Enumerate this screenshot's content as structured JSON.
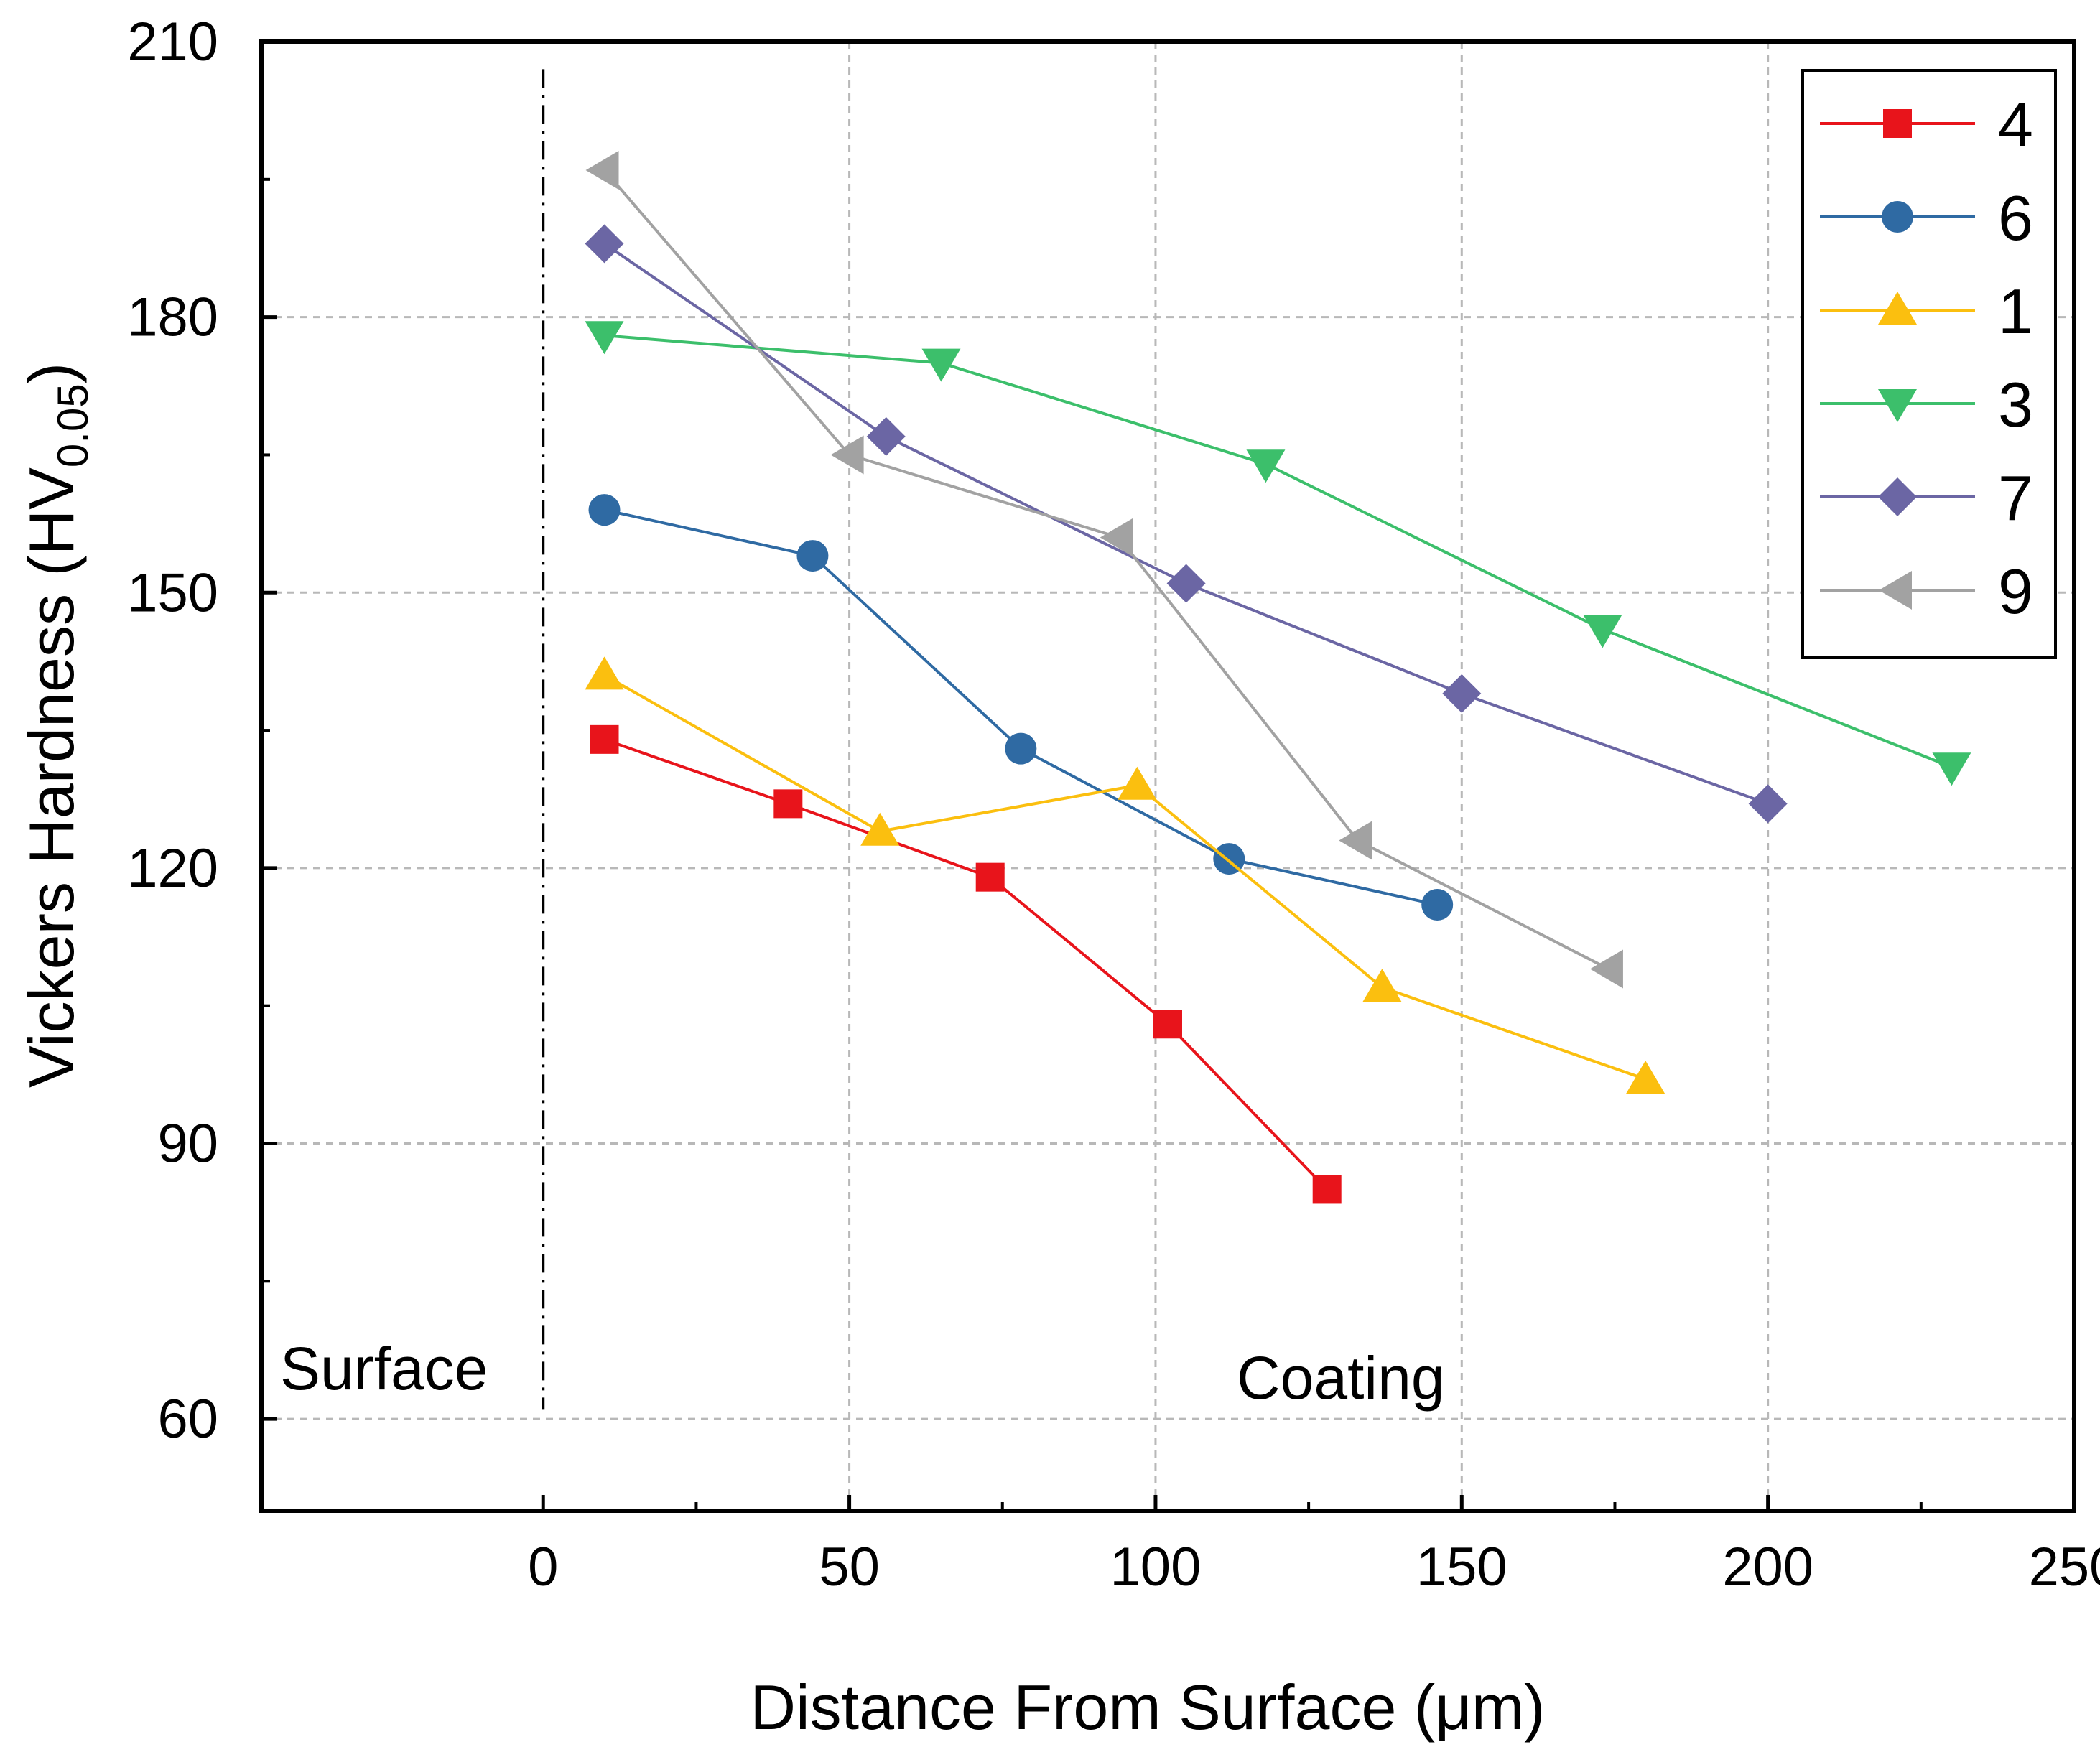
{
  "chart_data": {
    "type": "line",
    "title": "",
    "xlabel": "Distance From Surface (μm)",
    "ylabel_main": "Vickers Hardness (HV",
    "ylabel_sub": "0.05",
    "ylabel_close": ")",
    "xlim": [
      -46,
      250
    ],
    "ylim": [
      50,
      210
    ],
    "xticks": [
      0,
      50,
      100,
      150,
      200,
      250
    ],
    "yticks": [
      60,
      90,
      120,
      150,
      180,
      210
    ],
    "grid": true,
    "legend_position": "top-right",
    "annotations": {
      "surface": "Surface",
      "coating": "Coating"
    },
    "series": [
      {
        "name": "4",
        "marker": "square",
        "color": "#e8141b",
        "x": [
          10,
          40,
          73,
          102,
          128
        ],
        "y": [
          134,
          127,
          119,
          103,
          85
        ]
      },
      {
        "name": "6",
        "marker": "circle",
        "color": "#2f6aa3",
        "x": [
          10,
          44,
          78,
          112,
          146
        ],
        "y": [
          159,
          154,
          133,
          121,
          116
        ]
      },
      {
        "name": "1",
        "marker": "triangle-up",
        "color": "#fbbf0f",
        "x": [
          10,
          55,
          97,
          137,
          180
        ],
        "y": [
          141,
          124,
          129,
          107,
          97
        ]
      },
      {
        "name": "3",
        "marker": "triangle-down",
        "color": "#3cbf6b",
        "x": [
          10,
          65,
          118,
          173,
          230
        ],
        "y": [
          178,
          175,
          164,
          146,
          131
        ]
      },
      {
        "name": "7",
        "marker": "diamond",
        "color": "#6b66a4",
        "x": [
          10,
          56,
          105,
          150,
          200
        ],
        "y": [
          188,
          167,
          151,
          139,
          127
        ]
      },
      {
        "name": "9",
        "marker": "triangle-left",
        "color": "#a2a2a2",
        "x": [
          10,
          50,
          94,
          133,
          174
        ],
        "y": [
          196,
          165,
          156,
          123,
          109
        ]
      }
    ]
  }
}
